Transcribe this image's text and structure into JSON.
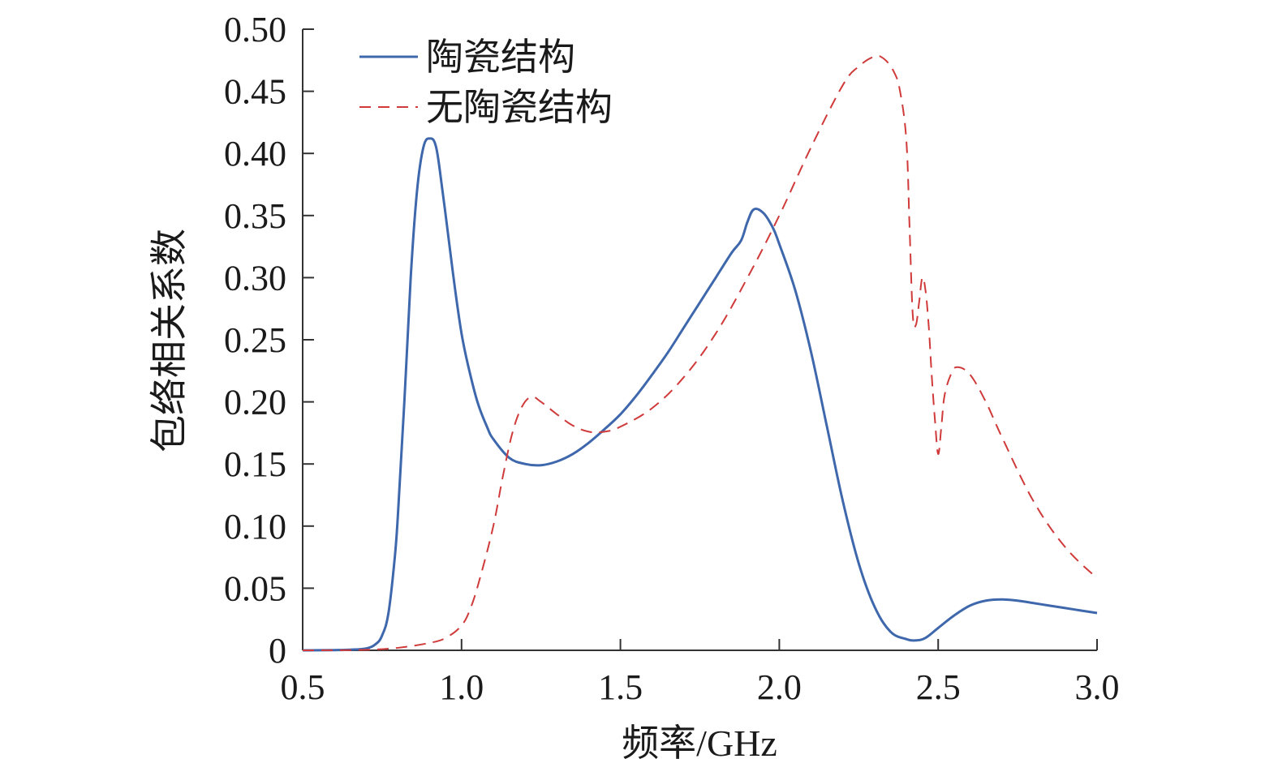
{
  "chart_data": {
    "type": "line",
    "title": "",
    "xlabel": "频率/GHz",
    "ylabel": "包络相关系数",
    "xlim": [
      0.5,
      3.0
    ],
    "ylim": [
      0,
      0.5
    ],
    "x_ticks": [
      0.5,
      1.0,
      1.5,
      2.0,
      2.5,
      3.0
    ],
    "x_tick_labels": [
      "0.5",
      "1.0",
      "1.5",
      "2.0",
      "2.5",
      "3.0"
    ],
    "y_ticks": [
      0,
      0.05,
      0.1,
      0.15,
      0.2,
      0.25,
      0.3,
      0.35,
      0.4,
      0.45,
      0.5
    ],
    "y_tick_labels": [
      "0",
      "0.05",
      "0.10",
      "0.15",
      "0.20",
      "0.25",
      "0.30",
      "0.35",
      "0.40",
      "0.45",
      "0.50"
    ],
    "grid": false,
    "legend_position": "top-left",
    "series": [
      {
        "name": "陶瓷结构",
        "color": "#3e67ac",
        "line_style": "solid",
        "x": [
          0.5,
          0.6,
          0.65,
          0.7,
          0.73,
          0.75,
          0.77,
          0.79,
          0.8,
          0.82,
          0.84,
          0.86,
          0.88,
          0.9,
          0.92,
          0.94,
          0.96,
          0.98,
          1.0,
          1.02,
          1.05,
          1.08,
          1.1,
          1.15,
          1.2,
          1.25,
          1.3,
          1.35,
          1.4,
          1.45,
          1.5,
          1.55,
          1.6,
          1.65,
          1.7,
          1.75,
          1.8,
          1.85,
          1.88,
          1.9,
          1.92,
          1.95,
          1.98,
          2.0,
          2.05,
          2.1,
          2.15,
          2.2,
          2.25,
          2.3,
          2.35,
          2.4,
          2.43,
          2.46,
          2.5,
          2.55,
          2.6,
          2.65,
          2.7,
          2.75,
          2.8,
          2.85,
          2.9,
          2.95,
          3.0
        ],
        "y": [
          0.0,
          0.0002,
          0.0005,
          0.0015,
          0.005,
          0.012,
          0.03,
          0.075,
          0.11,
          0.2,
          0.3,
          0.37,
          0.405,
          0.412,
          0.405,
          0.37,
          0.33,
          0.29,
          0.255,
          0.23,
          0.2,
          0.18,
          0.17,
          0.155,
          0.15,
          0.149,
          0.152,
          0.158,
          0.167,
          0.178,
          0.19,
          0.205,
          0.222,
          0.24,
          0.26,
          0.28,
          0.3,
          0.32,
          0.33,
          0.345,
          0.355,
          0.352,
          0.34,
          0.327,
          0.29,
          0.24,
          0.18,
          0.12,
          0.07,
          0.035,
          0.015,
          0.009,
          0.008,
          0.01,
          0.018,
          0.028,
          0.036,
          0.04,
          0.041,
          0.04,
          0.038,
          0.036,
          0.034,
          0.032,
          0.03
        ]
      },
      {
        "name": "无陶瓷结构",
        "color": "#d03a3a",
        "line_style": "dashed",
        "x": [
          0.5,
          0.6,
          0.7,
          0.8,
          0.9,
          0.95,
          1.0,
          1.03,
          1.06,
          1.1,
          1.13,
          1.16,
          1.19,
          1.22,
          1.25,
          1.3,
          1.35,
          1.4,
          1.45,
          1.5,
          1.6,
          1.7,
          1.8,
          1.9,
          2.0,
          2.1,
          2.2,
          2.25,
          2.3,
          2.33,
          2.36,
          2.38,
          2.4,
          2.41,
          2.42,
          2.43,
          2.44,
          2.45,
          2.46,
          2.47,
          2.48,
          2.49,
          2.5,
          2.51,
          2.52,
          2.54,
          2.56,
          2.6,
          2.65,
          2.7,
          2.8,
          2.9,
          3.0
        ],
        "y": [
          0.0,
          0.0001,
          0.0004,
          0.002,
          0.006,
          0.01,
          0.02,
          0.035,
          0.06,
          0.1,
          0.14,
          0.175,
          0.196,
          0.204,
          0.2,
          0.19,
          0.181,
          0.176,
          0.176,
          0.18,
          0.195,
          0.22,
          0.255,
          0.3,
          0.35,
          0.405,
          0.455,
          0.47,
          0.478,
          0.476,
          0.466,
          0.45,
          0.41,
          0.34,
          0.27,
          0.262,
          0.28,
          0.3,
          0.29,
          0.262,
          0.22,
          0.185,
          0.158,
          0.18,
          0.205,
          0.222,
          0.228,
          0.222,
          0.2,
          0.172,
          0.12,
          0.083,
          0.058
        ]
      }
    ]
  }
}
